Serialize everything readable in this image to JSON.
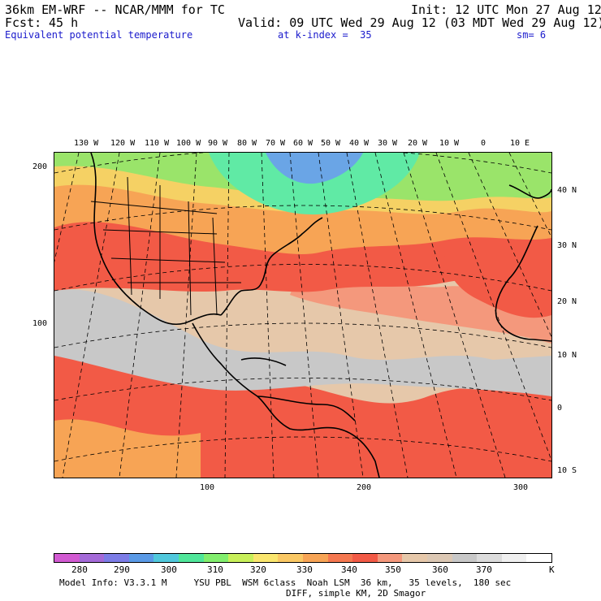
{
  "header": {
    "model_title": "36km EM-WRF -- NCAR/MMM for TC",
    "init": "Init: 12 UTC Mon 27 Aug 12",
    "fcst_label": "Fcst:",
    "fcst_hours": "45 h",
    "valid": "Valid: 09 UTC Wed 29 Aug 12 (03 MDT Wed 29 Aug 12)",
    "field": "Equivalent potential temperature",
    "level": "at k-index =  35",
    "smoothing": "sm= 6"
  },
  "map": {
    "lon_labels": [
      "130 W",
      "120 W",
      "110 W",
      "100 W",
      "90 W",
      "80 W",
      "70 W",
      "60 W",
      "50 W",
      "40 W",
      "30 W",
      "20 W",
      "10 W",
      "0",
      "10 E"
    ],
    "lat_labels": [
      "40 N",
      "30 N",
      "20 N",
      "10 N",
      "0",
      "10 S"
    ],
    "left_y_ticks": [
      "200",
      "100"
    ],
    "bottom_x_ticks": [
      "100",
      "200",
      "300"
    ],
    "colors": {
      "tropical_gray": "#c8c8c8",
      "tan": "#e6c8aa",
      "salmon": "#f4987c",
      "red": "#f25a46",
      "orange": "#f7a455",
      "yellow": "#f5d164",
      "green": "#9ae46a",
      "teal": "#60eaa5",
      "blue": "#6aa5e6"
    }
  },
  "colorbar": {
    "labels": [
      "280",
      "290",
      "300",
      "310",
      "320",
      "330",
      "340",
      "350",
      "360",
      "370",
      "K"
    ],
    "colors": [
      "#d25ad2",
      "#a46ad8",
      "#7c7ce6",
      "#5a9ae6",
      "#50c8dc",
      "#50e69a",
      "#82ee6e",
      "#c8f05a",
      "#fae66e",
      "#fac864",
      "#f7a455",
      "#f57850",
      "#f25a46",
      "#f4987c",
      "#e6c8aa",
      "#dcc8b4",
      "#c8c8c8",
      "#dcdcdc",
      "#f0f0f0",
      "#ffffff"
    ]
  },
  "footer": {
    "line1": "Model Info: V3.3.1 M     YSU PBL  WSM 6class  Noah LSM  36 km,   35 levels,  180 sec",
    "line2": "DIFF, simple KM, 2D Smagor"
  }
}
